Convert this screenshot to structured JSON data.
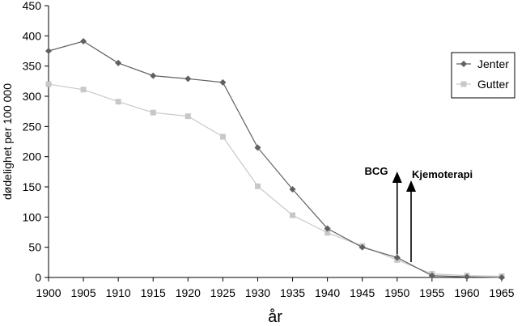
{
  "chart_data": {
    "type": "line",
    "xlabel": "år",
    "ylabel": "dødelighet per 100 000",
    "ylim": [
      0,
      450
    ],
    "y_ticks": [
      0,
      50,
      100,
      150,
      200,
      250,
      300,
      350,
      400,
      450
    ],
    "x": [
      1900,
      1905,
      1910,
      1915,
      1920,
      1925,
      1930,
      1935,
      1940,
      1945,
      1950,
      1955,
      1960,
      1965
    ],
    "grid": false,
    "legend_position": "right",
    "series": [
      {
        "name": "Jenter",
        "color": "#606060",
        "marker": "diamond",
        "values": [
          375,
          391,
          355,
          334,
          329,
          323,
          215,
          146,
          81,
          50,
          33,
          3,
          1,
          0
        ]
      },
      {
        "name": "Gutter",
        "color": "#c8c8c8",
        "marker": "square",
        "values": [
          320,
          311,
          291,
          273,
          267,
          233,
          151,
          103,
          74,
          52,
          29,
          6,
          3,
          2
        ]
      }
    ],
    "annotations": [
      {
        "label": "BCG",
        "x": 1950
      },
      {
        "label": "Kjemoterapi",
        "x": 1952
      }
    ]
  }
}
